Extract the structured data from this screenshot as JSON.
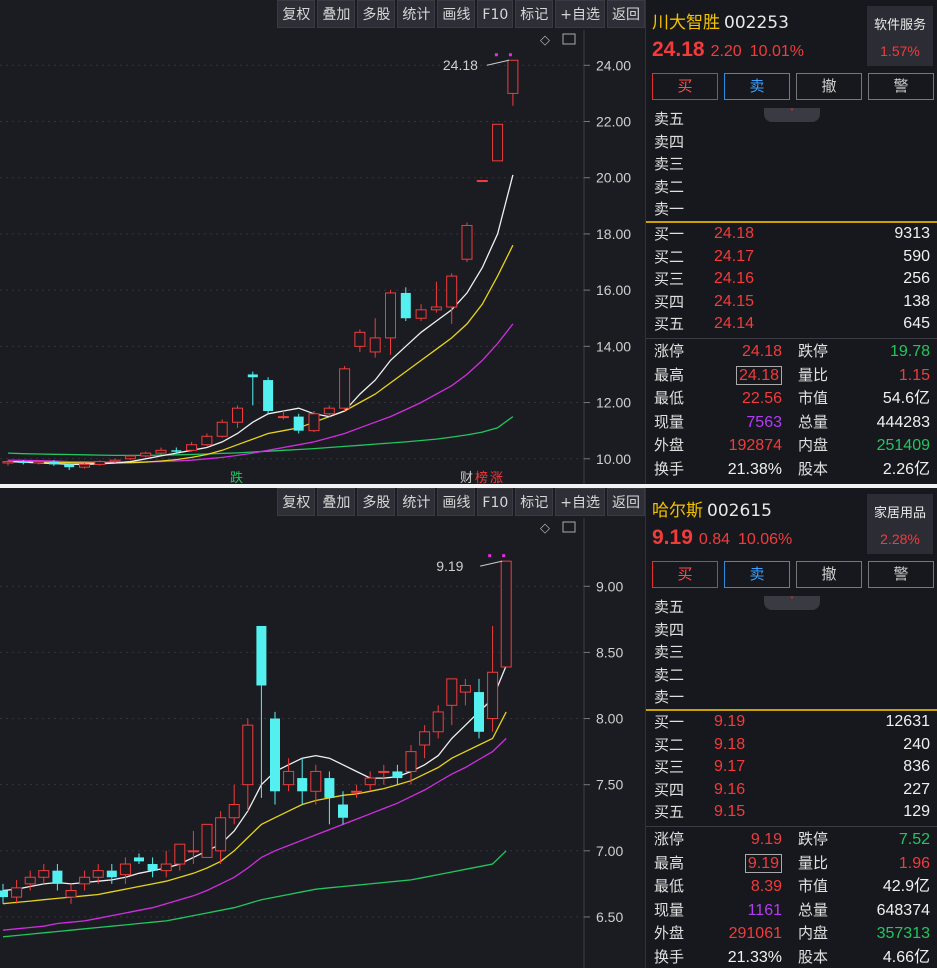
{
  "toolbar": [
    "复权",
    "叠加",
    "多股",
    "统计",
    "画线",
    "F10",
    "标记",
    "+自选",
    "返回"
  ],
  "panels": [
    {
      "name": "川大智胜",
      "code": "002253",
      "price": "24.18",
      "change": "2.20",
      "change_pct": "10.01%",
      "sector": "软件服务",
      "sector_pct": "1.57%",
      "actions": [
        "买",
        "卖",
        "撤",
        "警"
      ],
      "asks": [
        "卖五",
        "卖四",
        "卖三",
        "卖二",
        "卖一"
      ],
      "bids": [
        {
          "label": "买一",
          "price": "24.18",
          "vol": "9313"
        },
        {
          "label": "买二",
          "price": "24.17",
          "vol": "590"
        },
        {
          "label": "买三",
          "price": "24.16",
          "vol": "256"
        },
        {
          "label": "买四",
          "price": "24.15",
          "vol": "138"
        },
        {
          "label": "买五",
          "price": "24.14",
          "vol": "645"
        }
      ],
      "stats": [
        {
          "k1": "涨停",
          "v1": "24.18",
          "c1": "red",
          "k2": "跌停",
          "v2": "19.78",
          "c2": "green"
        },
        {
          "k1": "最高",
          "v1": "24.18",
          "c1": "red",
          "k2": "量比",
          "v2": "1.15",
          "c2": "red",
          "boxed": true
        },
        {
          "k1": "最低",
          "v1": "22.56",
          "c1": "red",
          "k2": "市值",
          "v2": "54.6亿",
          "c2": "white"
        },
        {
          "k1": "现量",
          "v1": "7563",
          "c1": "purple",
          "k2": "总量",
          "v2": "444283",
          "c2": "white"
        },
        {
          "k1": "外盘",
          "v1": "192874",
          "c1": "red",
          "k2": "内盘",
          "v2": "251409",
          "c2": "green"
        },
        {
          "k1": "换手",
          "v1": "21.38%",
          "c1": "white",
          "k2": "股本",
          "v2": "2.26亿",
          "c2": "white"
        }
      ],
      "chart_data": {
        "type": "candlestick",
        "price_labels": [
          "24.00",
          "22.00",
          "20.00",
          "18.00",
          "16.00",
          "14.00",
          "12.00",
          "10.00"
        ],
        "ylim": [
          9.6,
          24.9
        ],
        "last_label": "24.18",
        "bottom_tags": [
          "跌",
          "财",
          "榜",
          "涨"
        ],
        "candles": [
          [
            9.85,
            9.9,
            9.75,
            9.95
          ],
          [
            9.9,
            9.85,
            9.8,
            9.95
          ],
          [
            9.85,
            9.9,
            9.8,
            9.95
          ],
          [
            9.9,
            9.8,
            9.75,
            9.95
          ],
          [
            9.8,
            9.7,
            9.6,
            9.85
          ],
          [
            9.7,
            9.8,
            9.65,
            9.85
          ],
          [
            9.8,
            9.9,
            9.75,
            9.95
          ],
          [
            9.9,
            9.95,
            9.85,
            10.0
          ],
          [
            10.0,
            10.1,
            9.95,
            10.15
          ],
          [
            10.1,
            10.2,
            10.05,
            10.25
          ],
          [
            10.2,
            10.3,
            10.15,
            10.4
          ],
          [
            10.3,
            10.25,
            10.2,
            10.4
          ],
          [
            10.3,
            10.5,
            10.25,
            10.6
          ],
          [
            10.5,
            10.8,
            10.45,
            10.9
          ],
          [
            10.8,
            11.3,
            10.75,
            11.4
          ],
          [
            11.3,
            11.8,
            11.1,
            11.9
          ],
          [
            13.0,
            12.9,
            11.9,
            13.1
          ],
          [
            12.8,
            11.7,
            11.6,
            12.9
          ],
          [
            11.5,
            11.5,
            11.4,
            11.7
          ],
          [
            11.5,
            11.0,
            10.9,
            11.6
          ],
          [
            11.0,
            11.6,
            10.95,
            11.7
          ],
          [
            11.6,
            11.8,
            11.5,
            11.9
          ],
          [
            11.8,
            13.2,
            11.7,
            13.3
          ],
          [
            14.0,
            14.5,
            13.8,
            14.6
          ],
          [
            13.8,
            14.3,
            13.6,
            15.0
          ],
          [
            14.3,
            15.9,
            13.7,
            16.0
          ],
          [
            15.9,
            15.0,
            14.9,
            16.1
          ],
          [
            15.0,
            15.3,
            14.9,
            15.5
          ],
          [
            15.3,
            15.4,
            15.2,
            16.3
          ],
          [
            15.4,
            16.5,
            14.8,
            16.6
          ],
          [
            17.1,
            18.3,
            17.0,
            18.4
          ],
          [
            19.9,
            19.9,
            19.9,
            19.9
          ],
          [
            20.6,
            21.9,
            20.6,
            21.9
          ],
          [
            23.0,
            24.18,
            22.56,
            24.18
          ]
        ],
        "ma5": [
          9.9,
          9.88,
          9.85,
          9.83,
          9.8,
          9.8,
          9.82,
          9.85,
          9.9,
          10.0,
          10.1,
          10.2,
          10.3,
          10.4,
          10.6,
          10.9,
          11.3,
          11.6,
          11.7,
          11.8,
          11.6,
          11.5,
          11.7,
          12.3,
          12.8,
          13.5,
          14.0,
          14.5,
          14.9,
          15.3,
          15.9,
          16.8,
          18.0,
          20.1
        ],
        "ma10": [
          9.9,
          9.89,
          9.88,
          9.87,
          9.86,
          9.85,
          9.85,
          9.85,
          9.86,
          9.88,
          9.92,
          9.97,
          10.05,
          10.15,
          10.3,
          10.5,
          10.7,
          10.9,
          11.0,
          11.1,
          11.3,
          11.5,
          11.7,
          12.0,
          12.3,
          12.7,
          13.1,
          13.5,
          13.9,
          14.3,
          14.8,
          15.5,
          16.5,
          17.6
        ],
        "ma20": [
          9.95,
          9.94,
          9.93,
          9.92,
          9.9,
          9.89,
          9.88,
          9.88,
          9.88,
          9.89,
          9.9,
          9.92,
          9.95,
          10.0,
          10.05,
          10.12,
          10.2,
          10.3,
          10.4,
          10.5,
          10.6,
          10.75,
          10.9,
          11.1,
          11.3,
          11.5,
          11.75,
          12.0,
          12.3,
          12.6,
          13.0,
          13.5,
          14.1,
          14.8
        ],
        "ma60": [
          10.2,
          10.18,
          10.17,
          10.16,
          10.15,
          10.14,
          10.13,
          10.12,
          10.12,
          10.12,
          10.13,
          10.14,
          10.15,
          10.17,
          10.19,
          10.21,
          10.24,
          10.27,
          10.3,
          10.33,
          10.36,
          10.4,
          10.44,
          10.48,
          10.52,
          10.56,
          10.6,
          10.65,
          10.7,
          10.77,
          10.85,
          10.95,
          11.1,
          11.5
        ]
      }
    },
    {
      "name": "哈尔斯",
      "code": "002615",
      "price": "9.19",
      "change": "0.84",
      "change_pct": "10.06%",
      "sector": "家居用品",
      "sector_pct": "2.28%",
      "actions": [
        "买",
        "卖",
        "撤",
        "警"
      ],
      "asks": [
        "卖五",
        "卖四",
        "卖三",
        "卖二",
        "卖一"
      ],
      "bids": [
        {
          "label": "买一",
          "price": "9.19",
          "vol": "12631"
        },
        {
          "label": "买二",
          "price": "9.18",
          "vol": "240"
        },
        {
          "label": "买三",
          "price": "9.17",
          "vol": "836"
        },
        {
          "label": "买四",
          "price": "9.16",
          "vol": "227"
        },
        {
          "label": "买五",
          "price": "9.15",
          "vol": "129"
        }
      ],
      "stats": [
        {
          "k1": "涨停",
          "v1": "9.19",
          "c1": "red",
          "k2": "跌停",
          "v2": "7.52",
          "c2": "green"
        },
        {
          "k1": "最高",
          "v1": "9.19",
          "c1": "red",
          "k2": "量比",
          "v2": "1.96",
          "c2": "red",
          "boxed": true
        },
        {
          "k1": "最低",
          "v1": "8.39",
          "c1": "red",
          "k2": "市值",
          "v2": "42.9亿",
          "c2": "white"
        },
        {
          "k1": "现量",
          "v1": "1161",
          "c1": "purple",
          "k2": "总量",
          "v2": "648374",
          "c2": "white"
        },
        {
          "k1": "外盘",
          "v1": "291061",
          "c1": "red",
          "k2": "内盘",
          "v2": "357313",
          "c2": "green"
        },
        {
          "k1": "换手",
          "v1": "21.33%",
          "c1": "white",
          "k2": "股本",
          "v2": "4.66亿",
          "c2": "white"
        }
      ],
      "chart_data": {
        "type": "candlestick",
        "price_labels": [
          "9.00",
          "8.50",
          "8.00",
          "7.50",
          "7.00",
          "6.50"
        ],
        "ylim": [
          6.25,
          9.35
        ],
        "last_label": "9.19",
        "bottom_tags": [],
        "candles": [
          [
            6.7,
            6.65,
            6.6,
            6.75
          ],
          [
            6.65,
            6.72,
            6.6,
            6.78
          ],
          [
            6.75,
            6.8,
            6.7,
            6.85
          ],
          [
            6.8,
            6.85,
            6.75,
            6.9
          ],
          [
            6.85,
            6.75,
            6.7,
            6.9
          ],
          [
            6.65,
            6.7,
            6.6,
            6.75
          ],
          [
            6.75,
            6.8,
            6.7,
            6.85
          ],
          [
            6.8,
            6.85,
            6.75,
            6.9
          ],
          [
            6.85,
            6.8,
            6.75,
            6.9
          ],
          [
            6.82,
            6.9,
            6.75,
            6.95
          ],
          [
            6.95,
            6.92,
            6.9,
            6.98
          ],
          [
            6.9,
            6.85,
            6.8,
            6.95
          ],
          [
            6.85,
            6.9,
            6.8,
            7.0
          ],
          [
            6.9,
            7.05,
            6.85,
            7.05
          ],
          [
            7.0,
            7.0,
            6.9,
            7.15
          ],
          [
            6.95,
            7.2,
            6.95,
            7.2
          ],
          [
            7.0,
            7.25,
            6.9,
            7.3
          ],
          [
            7.25,
            7.35,
            7.2,
            7.5
          ],
          [
            7.5,
            7.95,
            7.3,
            8.0
          ],
          [
            8.7,
            8.25,
            7.4,
            8.7
          ],
          [
            8.0,
            7.45,
            7.35,
            8.05
          ],
          [
            7.5,
            7.6,
            7.45,
            7.7
          ],
          [
            7.55,
            7.45,
            7.35,
            7.7
          ],
          [
            7.45,
            7.6,
            7.35,
            7.65
          ],
          [
            7.55,
            7.4,
            7.2,
            7.6
          ],
          [
            7.35,
            7.25,
            7.2,
            7.45
          ],
          [
            7.45,
            7.45,
            7.4,
            7.5
          ],
          [
            7.5,
            7.55,
            7.45,
            7.6
          ],
          [
            7.6,
            7.6,
            7.5,
            7.65
          ],
          [
            7.6,
            7.55,
            7.5,
            7.65
          ],
          [
            7.6,
            7.75,
            7.5,
            7.8
          ],
          [
            7.8,
            7.9,
            7.7,
            7.95
          ],
          [
            7.9,
            8.05,
            7.85,
            8.1
          ],
          [
            8.1,
            8.3,
            7.95,
            8.3
          ],
          [
            8.2,
            8.25,
            8.1,
            8.3
          ],
          [
            8.2,
            7.9,
            7.85,
            8.3
          ],
          [
            8.0,
            8.35,
            7.9,
            8.7
          ],
          [
            8.39,
            9.19,
            8.39,
            9.19
          ]
        ],
        "ma5": [
          6.7,
          6.71,
          6.73,
          6.75,
          6.76,
          6.75,
          6.76,
          6.77,
          6.78,
          6.8,
          6.83,
          6.85,
          6.87,
          6.9,
          6.95,
          7.0,
          7.05,
          7.15,
          7.3,
          7.5,
          7.6,
          7.65,
          7.7,
          7.72,
          7.7,
          7.65,
          7.6,
          7.55,
          7.55,
          7.56,
          7.6,
          7.65,
          7.72,
          7.85,
          7.95,
          8.05,
          8.15,
          8.4
        ],
        "ma10": [
          6.6,
          6.61,
          6.62,
          6.63,
          6.64,
          6.65,
          6.66,
          6.67,
          6.69,
          6.71,
          6.73,
          6.75,
          6.77,
          6.8,
          6.83,
          6.87,
          6.92,
          7.0,
          7.1,
          7.2,
          7.25,
          7.3,
          7.35,
          7.38,
          7.4,
          7.42,
          7.43,
          7.45,
          7.47,
          7.5,
          7.53,
          7.58,
          7.63,
          7.7,
          7.75,
          7.8,
          7.85,
          8.05
        ],
        "ma20": [
          6.4,
          6.41,
          6.42,
          6.43,
          6.45,
          6.46,
          6.47,
          6.49,
          6.51,
          6.53,
          6.55,
          6.57,
          6.6,
          6.63,
          6.66,
          6.7,
          6.75,
          6.8,
          6.87,
          6.95,
          7.0,
          7.04,
          7.08,
          7.12,
          7.16,
          7.2,
          7.24,
          7.28,
          7.32,
          7.36,
          7.41,
          7.46,
          7.52,
          7.58,
          7.63,
          7.69,
          7.75,
          7.85
        ],
        "ma60": [
          6.35,
          6.36,
          6.37,
          6.38,
          6.39,
          6.4,
          6.41,
          6.42,
          6.43,
          6.44,
          6.45,
          6.46,
          6.47,
          6.49,
          6.51,
          6.53,
          6.55,
          6.57,
          6.6,
          6.63,
          6.65,
          6.67,
          6.69,
          6.71,
          6.72,
          6.73,
          6.74,
          6.75,
          6.76,
          6.77,
          6.78,
          6.8,
          6.82,
          6.84,
          6.86,
          6.88,
          6.9,
          7.0
        ]
      }
    }
  ]
}
